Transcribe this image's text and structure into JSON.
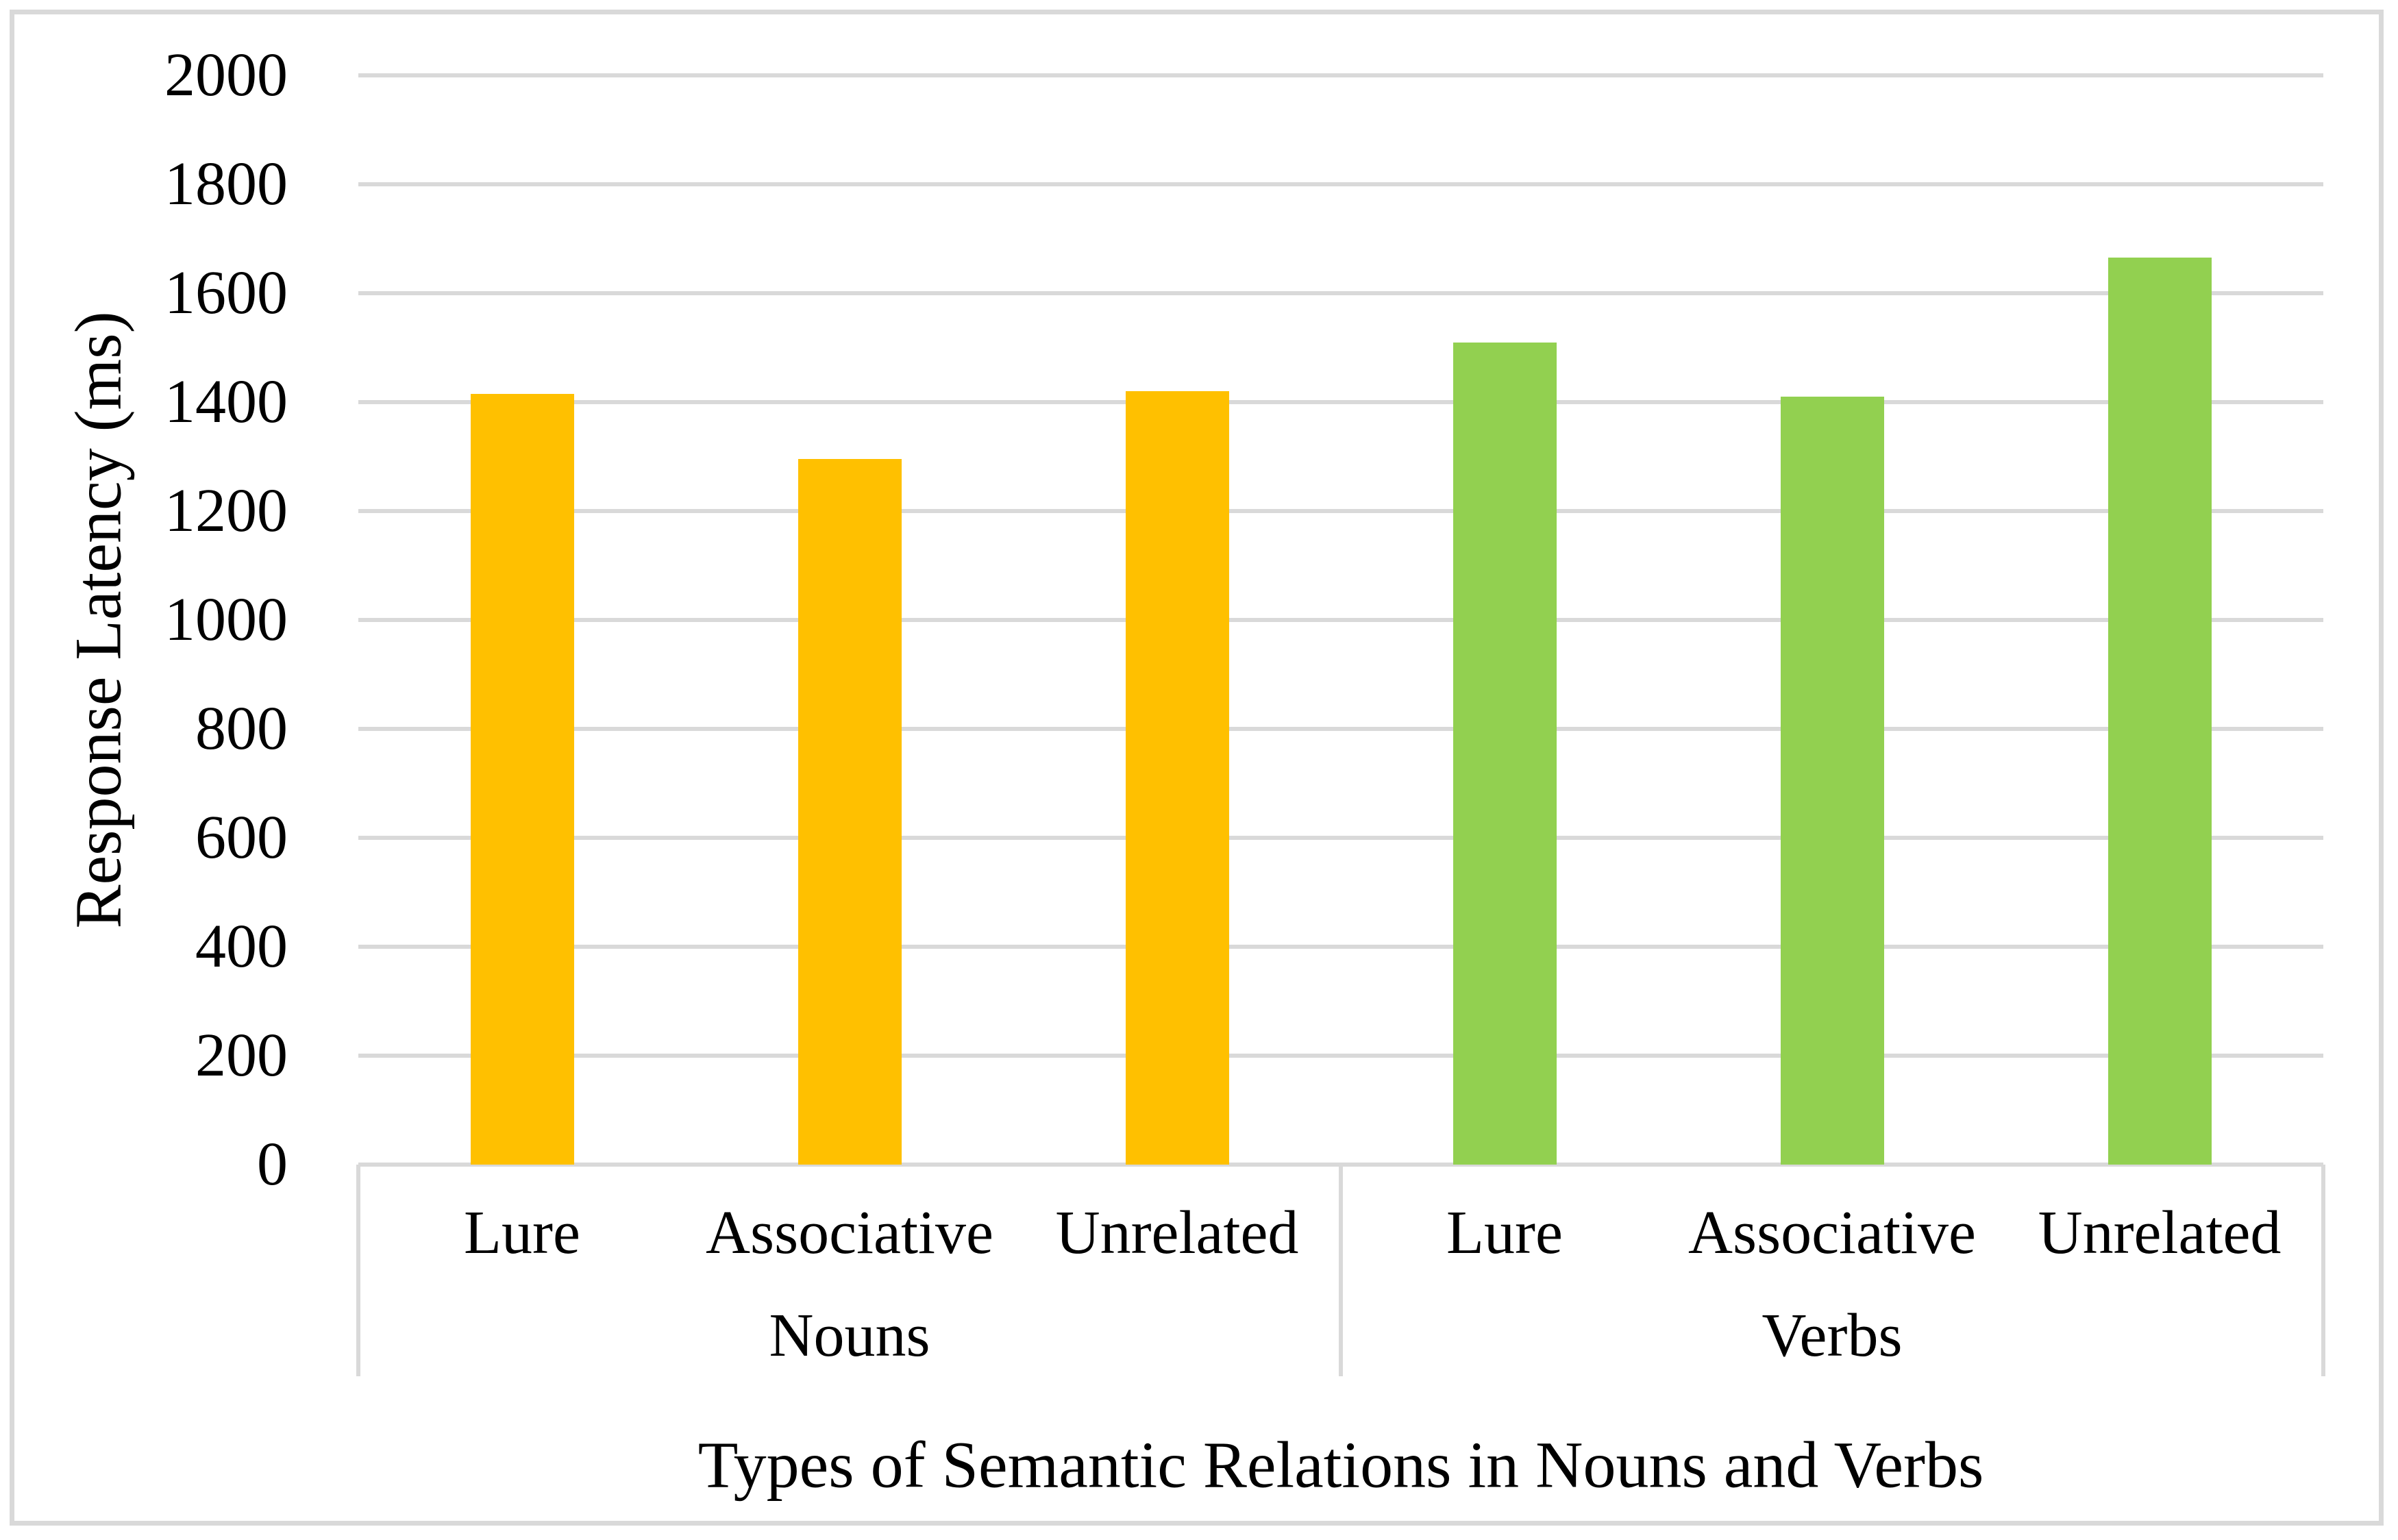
{
  "chart_data": {
    "type": "bar",
    "title": "",
    "xlabel": "Types of Semantic Relations in Nouns and Verbs",
    "ylabel": "Response Latency (ms)",
    "ylim": [
      0,
      2000
    ],
    "ytick_step": 200,
    "ytick_labels": [
      "0",
      "200",
      "400",
      "600",
      "800",
      "1000",
      "1200",
      "1400",
      "1600",
      "1800",
      "2000"
    ],
    "grid": true,
    "legend_position": "none",
    "categories": [
      "Lure",
      "Associative",
      "Unrelated",
      "Lure",
      "Associative",
      "Unrelated"
    ],
    "groups": [
      {
        "label": "Nouns",
        "color": "#FFC000",
        "categories": [
          "Lure",
          "Associative",
          "Unrelated"
        ],
        "values": [
          1415,
          1295,
          1420
        ]
      },
      {
        "label": "Verbs",
        "color": "#92D050",
        "categories": [
          "Lure",
          "Associative",
          "Unrelated"
        ],
        "values": [
          1510,
          1410,
          1665
        ]
      }
    ]
  },
  "colors": {
    "background": "#FFFFFF",
    "grid": "#D9D9D9",
    "border": "#D9D9D9",
    "text": "#000000",
    "nouns_bar": "#FFC000",
    "verbs_bar": "#92D050"
  }
}
